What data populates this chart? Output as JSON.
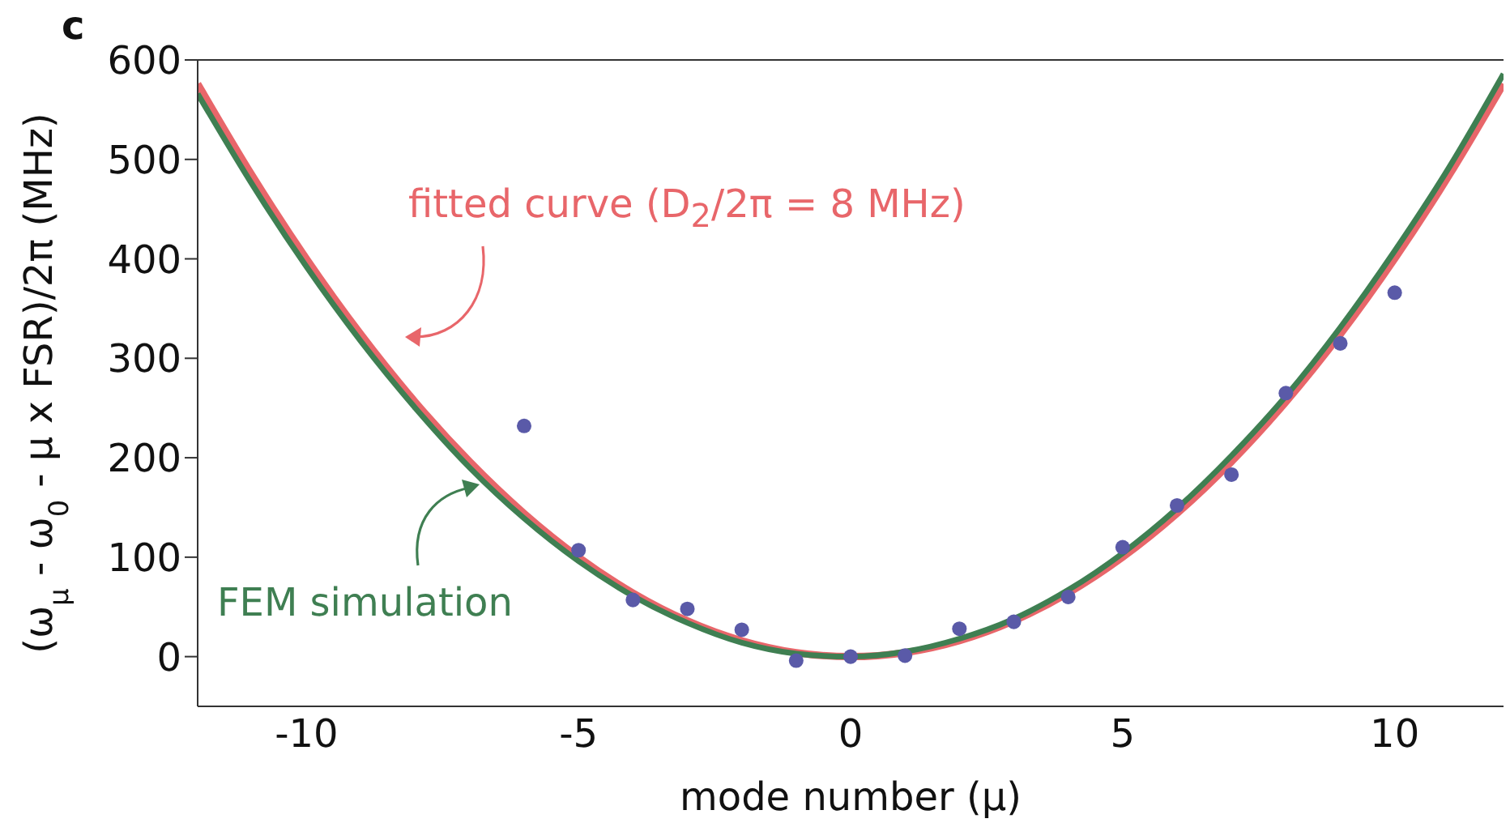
{
  "chart_data": {
    "type": "line",
    "annotations": [
      "c"
    ],
    "xlabel": "mode number (μ)",
    "ylabel": "(ω$_{μ}$ - ω$_{0}$ - μ x FSR)/2π (MHz)",
    "xlim": [
      -12,
      12
    ],
    "xticks": [
      -10,
      -5,
      0,
      5,
      10
    ],
    "ylim": [
      -50,
      600
    ],
    "yticks": [
      0,
      100,
      200,
      300,
      400,
      500,
      600
    ],
    "marker": "none",
    "line_style": "solid",
    "series": [
      {
        "name": "fitted curve (D$_{2}$/2π = 8 MHz)",
        "color": "#e8666a",
        "x": [
          -12,
          -11,
          -10,
          -9,
          -8,
          -7,
          -6,
          -5,
          -4,
          -3,
          -2,
          -1,
          0,
          1,
          2,
          3,
          4,
          5,
          6,
          7,
          8,
          9,
          10,
          11,
          12
        ],
        "values": [
          576,
          484,
          400,
          324,
          256,
          196,
          144,
          100,
          64,
          36,
          16,
          4,
          0,
          4,
          16,
          36,
          64,
          100,
          144,
          196,
          256,
          324,
          400,
          484,
          576
        ]
      },
      {
        "name": "FEM simulation",
        "color": "#3f7f52",
        "x": [
          -12,
          -11,
          -10,
          -9,
          -8,
          -7,
          -6,
          -5,
          -4,
          -3,
          -2,
          -1,
          0,
          1,
          2,
          3,
          4,
          5,
          6,
          7,
          8,
          9,
          10,
          11,
          12
        ],
        "values": [
          566,
          475,
          392,
          317,
          250,
          190,
          139,
          96,
          61,
          34,
          14,
          3,
          0,
          5,
          18,
          38,
          67,
          104,
          149,
          202,
          262,
          331,
          408,
          492,
          586
        ]
      },
      {
        "type": "scatter",
        "color": "#5a5aa8",
        "marker": "circle",
        "x": [
          -6,
          -5,
          -4,
          -3,
          -2,
          -1,
          0,
          1,
          2,
          3,
          4,
          5,
          6,
          7,
          8,
          9,
          10
        ],
        "values": [
          232,
          107,
          57,
          48,
          27,
          -4,
          0,
          1,
          28,
          35,
          60,
          110,
          152,
          183,
          265,
          315,
          366
        ]
      }
    ]
  }
}
